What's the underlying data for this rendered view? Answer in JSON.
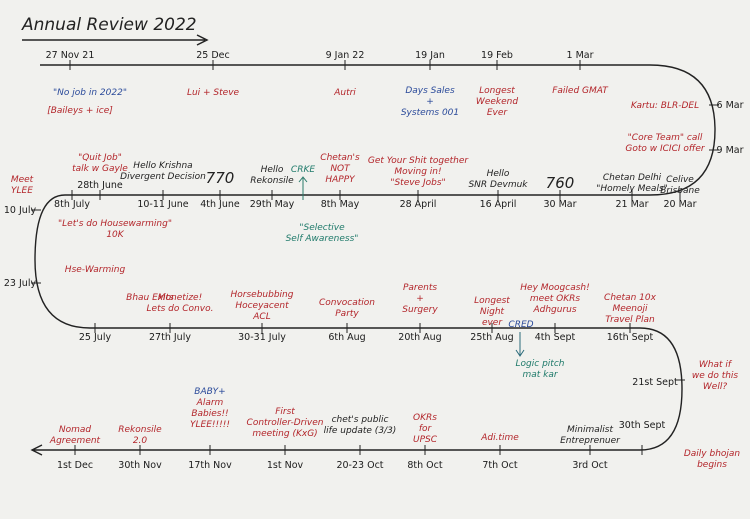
{
  "title": "Annual Review 2022",
  "events": [
    {
      "date": "27 Nov 21",
      "lines": []
    },
    {
      "date": "25 Dec",
      "lines": [
        "Lui + Steve"
      ]
    },
    {
      "date": "9 Jan 22",
      "lines": [
        "Autri"
      ]
    },
    {
      "date": "19 Jan",
      "lines": [
        "Days Sales",
        "+",
        "Systems 001"
      ]
    },
    {
      "date": "19 Feb",
      "lines": [
        "Longest",
        "Weekend",
        "Ever"
      ]
    },
    {
      "date": "1 Mar",
      "lines": [
        "Failed GMAT"
      ]
    },
    {
      "date": "6 Mar",
      "lines": [
        "Kartu: BLR-DEL"
      ]
    },
    {
      "date": "9 Mar",
      "lines": [
        "\"Core Team\" call",
        "Goto w ICICI offer"
      ]
    },
    {
      "date": "20 Mar",
      "lines": [
        "Celive",
        "Brisbane"
      ]
    },
    {
      "date": "21 Mar",
      "lines": [
        "Chetan Delhi",
        "\"Homely Meals\""
      ]
    },
    {
      "date": "30 Mar",
      "lines": [
        "760"
      ]
    },
    {
      "date": "16 April",
      "lines": [
        "Hello",
        "SNR Devmuk"
      ]
    },
    {
      "date": "28 April",
      "lines": [
        "Get Your Shit together",
        "Moving in!",
        "\"Steve Jobs\""
      ]
    },
    {
      "date": "8th May",
      "lines": [
        "Chetan's",
        "NOT",
        "HAPPY"
      ]
    },
    {
      "date": "29th May",
      "lines": [
        "Hello",
        "Rekonsile"
      ]
    },
    {
      "date": "4th June",
      "lines": [
        "770"
      ]
    },
    {
      "date": "10-11 June",
      "lines": [
        "Hello Krishna",
        "Divergent Decision"
      ]
    },
    {
      "date": "28th June",
      "lines": [
        "\"Quit Job\"",
        "talk w Gayle"
      ]
    },
    {
      "date": "8th July",
      "lines": [
        "\"Let's do Housewarming\"",
        "10K"
      ]
    },
    {
      "date": "10 July",
      "lines": [
        "Meet",
        "YLEE"
      ]
    },
    {
      "date": "23 July",
      "lines": [
        "Hse-Warming"
      ]
    },
    {
      "date": "25 July",
      "lines": [
        "Bhau Exits"
      ]
    },
    {
      "date": "27th July",
      "lines": [
        "Monetize!",
        "Lets do Convo."
      ]
    },
    {
      "date": "30-31 July",
      "lines": [
        "Horsebubbing",
        "Hoceyacent",
        "ACL"
      ]
    },
    {
      "date": "6th Aug",
      "lines": [
        "Convocation",
        "Party"
      ]
    },
    {
      "date": "20th Aug",
      "lines": [
        "Parents",
        "+",
        "Surgery"
      ]
    },
    {
      "date": "25th Aug",
      "lines": [
        "Longest",
        "Night",
        "ever"
      ]
    },
    {
      "date": "4th Sept",
      "lines": [
        "Hey Moogcash!",
        "meet OKRs",
        "Adhgurus"
      ]
    },
    {
      "date": "16th Sept",
      "lines": [
        "Chetan 10x",
        "Meenoji",
        "Travel Plan"
      ]
    },
    {
      "date": "21st Sept",
      "lines": [
        "What if",
        "we do this",
        "Well?"
      ]
    },
    {
      "date": "30th Sept",
      "lines": [
        "Daily bhojan",
        "begins"
      ]
    },
    {
      "date": "3rd Oct",
      "lines": [
        "Minimalist",
        "Entreprenuer"
      ]
    },
    {
      "date": "7th Oct",
      "lines": [
        "Adi.time"
      ]
    },
    {
      "date": "8th Oct",
      "lines": [
        "OKRs",
        "for",
        "UPSC"
      ]
    },
    {
      "date": "20-23 Oct",
      "lines": [
        "chet's public",
        "life update (3/3)"
      ]
    },
    {
      "date": "1st Nov",
      "lines": [
        "First",
        "Controller-Driven",
        "meeting (KxG)"
      ]
    },
    {
      "date": "17th Nov",
      "lines": [
        "BABY+",
        "Alarm",
        "Babies!!",
        "YLEE!!!!!"
      ]
    },
    {
      "date": "30th Nov",
      "lines": [
        "Rekonsile",
        "2.0"
      ]
    },
    {
      "date": "1st Dec",
      "lines": [
        "Nomad",
        "Agreement"
      ]
    }
  ],
  "notes": [
    {
      "lines": [
        "\"No job in 2022\""
      ]
    },
    {
      "lines": [
        "[Baileys + ice]"
      ]
    },
    {
      "lines": [
        "CRKE"
      ]
    },
    {
      "lines": [
        "\"Selective",
        "Self Awareness\""
      ]
    },
    {
      "lines": [
        "CRED"
      ]
    },
    {
      "lines": [
        "Logic pitch",
        "mat kar"
      ]
    }
  ]
}
